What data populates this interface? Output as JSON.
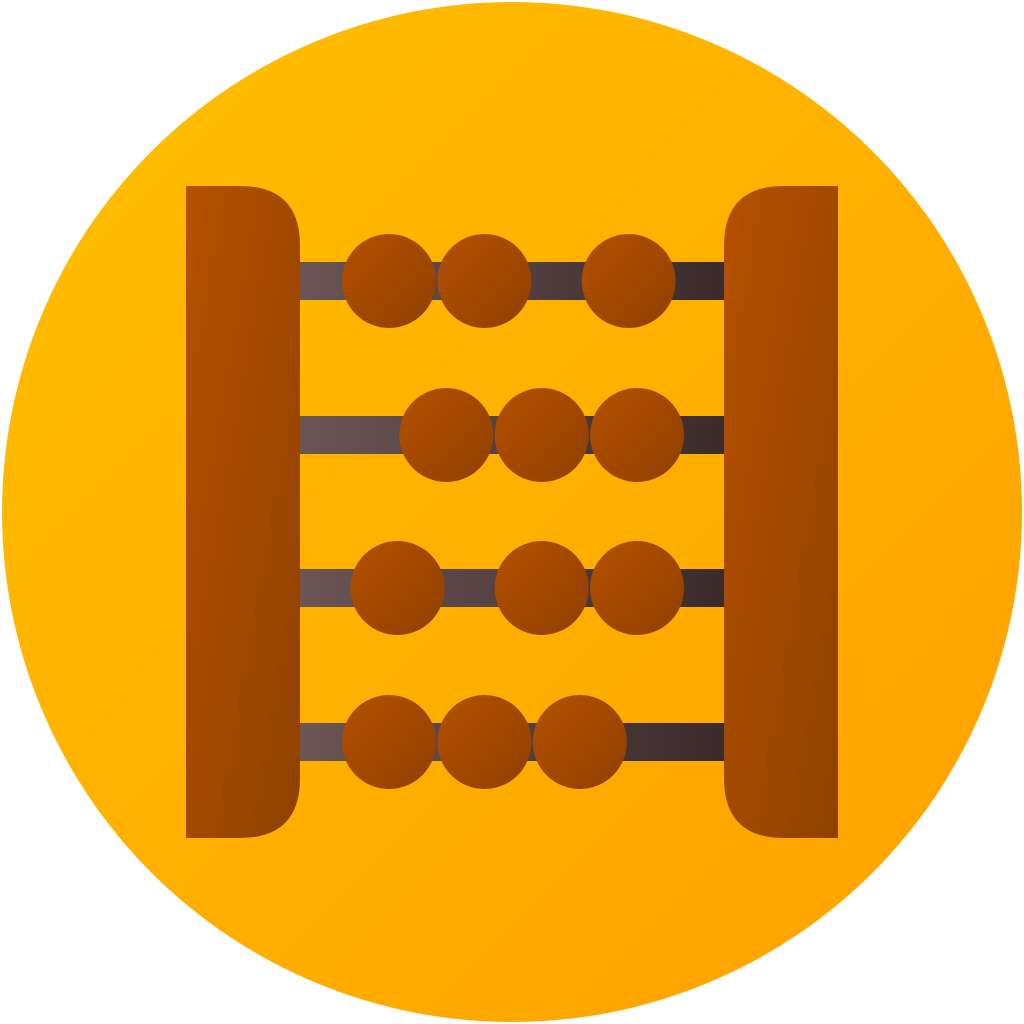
{
  "icon": {
    "name": "abacus-icon",
    "colors": {
      "background_start": "#FFC000",
      "background_end": "#FFA000",
      "frame_start": "#B55000",
      "frame_end": "#8E4200",
      "rod_start": "#6B5555",
      "rod_end": "#3B2B2B",
      "bead_start": "#B55000",
      "bead_end": "#8E4000"
    },
    "rows": [
      {
        "bead_positions": [
          0.21,
          0.435,
          0.775
        ]
      },
      {
        "bead_positions": [
          0.345,
          0.57,
          0.795
        ]
      },
      {
        "bead_positions": [
          0.23,
          0.57,
          0.795
        ]
      },
      {
        "bead_positions": [
          0.21,
          0.435,
          0.66
        ]
      }
    ]
  }
}
